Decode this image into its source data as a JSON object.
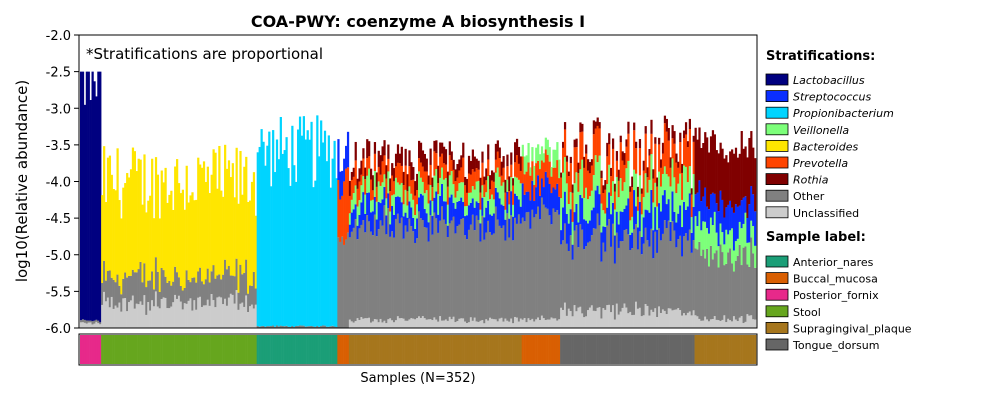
{
  "chart_data": {
    "type": "bar",
    "title": "COA-PWY: coenzyme A biosynthesis I",
    "ylabel": "log10(Relative abundance)",
    "xlabel": "Samples (N=352)",
    "ylim": [
      -6.0,
      -2.0
    ],
    "yticks": [
      "-2.0",
      "-2.5",
      "-3.0",
      "-3.5",
      "-4.0",
      "-4.5",
      "-5.0",
      "-5.5",
      "-6.0"
    ],
    "ytick_values": [
      -2.0,
      -2.5,
      -3.0,
      -3.5,
      -4.0,
      -4.5,
      -5.0,
      -5.5,
      -6.0
    ],
    "annotation": "*Stratifications are proportional",
    "n_samples": 352,
    "stratification_title": "Stratifications:",
    "stratifications": [
      {
        "name": "Lactobacillus",
        "color": "#000080",
        "italic": true
      },
      {
        "name": "Streptococcus",
        "color": "#0a2eff",
        "italic": true
      },
      {
        "name": "Propionibacterium",
        "color": "#00d4ff",
        "italic": true
      },
      {
        "name": "Veillonella",
        "color": "#7dff7a",
        "italic": true
      },
      {
        "name": "Bacteroides",
        "color": "#ffe600",
        "italic": true
      },
      {
        "name": "Prevotella",
        "color": "#ff4400",
        "italic": true
      },
      {
        "name": "Rothia",
        "color": "#800000",
        "italic": true
      },
      {
        "name": "Other",
        "color": "#808080",
        "italic": false
      },
      {
        "name": "Unclassified",
        "color": "#cccccc",
        "italic": false
      }
    ],
    "sample_label_title": "Sample label:",
    "sample_labels": [
      {
        "name": "Anterior_nares",
        "color": "#1b9e77"
      },
      {
        "name": "Buccal_mucosa",
        "color": "#d95f02"
      },
      {
        "name": "Posterior_fornix",
        "color": "#e7298a"
      },
      {
        "name": "Stool",
        "color": "#66a61e"
      },
      {
        "name": "Supragingival_plaque",
        "color": "#a6761d"
      },
      {
        "name": "Tongue_dorsum",
        "color": "#666666"
      }
    ],
    "sample_groups": [
      {
        "label": "Posterior_fornix",
        "count": 11,
        "top": -2.6,
        "top_range": [
          -4.3,
          -2.5
        ],
        "main": "Lactobacillus",
        "main_frac": 0.97,
        "others": [
          [
            "Other",
            0.01
          ],
          [
            "Unclassified",
            0.02
          ]
        ]
      },
      {
        "label": "Stool",
        "count": 81,
        "top": -4.0,
        "top_range": [
          -4.6,
          -2.9
        ],
        "main": "Bacteroides",
        "main_frac": 0.65,
        "others": [
          [
            "Other",
            0.18
          ],
          [
            "Unclassified",
            0.17
          ]
        ]
      },
      {
        "label": "Anterior_nares",
        "count": 42,
        "top": -3.6,
        "top_range": [
          -4.5,
          -2.8
        ],
        "main": "Propionibacterium",
        "main_frac": 0.99,
        "others": [
          [
            "Other",
            0.01
          ]
        ]
      },
      {
        "label": "Buccal_mucosa",
        "count": 6,
        "top": -3.5,
        "top_range": [
          -4.2,
          -2.75
        ],
        "main": "Other",
        "main_frac": 0.5,
        "others": [
          [
            "Prevotella",
            0.3
          ],
          [
            "Streptococcus",
            0.2
          ]
        ]
      },
      {
        "label": "Supragingival_plaque",
        "count": 90,
        "top": -3.7,
        "top_range": [
          -4.3,
          -3.3
        ],
        "main": "Other",
        "main_frac": 0.55,
        "others": [
          [
            "Streptococcus",
            0.12
          ],
          [
            "Veillonella",
            0.1
          ],
          [
            "Prevotella",
            0.1
          ],
          [
            "Rothia",
            0.08
          ],
          [
            "Unclassified",
            0.05
          ]
        ]
      },
      {
        "label": "Buccal_mucosa",
        "count": 20,
        "top": -3.6,
        "top_range": [
          -4.1,
          -3.3
        ],
        "main": "Other",
        "main_frac": 0.6,
        "others": [
          [
            "Streptococcus",
            0.15
          ],
          [
            "Prevotella",
            0.12
          ],
          [
            "Veillonella",
            0.08
          ],
          [
            "Unclassified",
            0.05
          ]
        ]
      },
      {
        "label": "Tongue_dorsum",
        "count": 70,
        "top": -3.6,
        "top_range": [
          -4.8,
          -3.1
        ],
        "main": "Other",
        "main_frac": 0.4,
        "others": [
          [
            "Streptococcus",
            0.15
          ],
          [
            "Veillonella",
            0.15
          ],
          [
            "Prevotella",
            0.15
          ],
          [
            "Rothia",
            0.05
          ],
          [
            "Unclassified",
            0.1
          ]
        ]
      },
      {
        "label": "Supragingival_plaque",
        "count": 32,
        "top": -3.5,
        "top_range": [
          -4.0,
          -3.2
        ],
        "main": "Rothia",
        "main_frac": 0.3,
        "others": [
          [
            "Other",
            0.35
          ],
          [
            "Veillonella",
            0.15
          ],
          [
            "Streptococcus",
            0.15
          ],
          [
            "Unclassified",
            0.05
          ]
        ]
      }
    ]
  }
}
